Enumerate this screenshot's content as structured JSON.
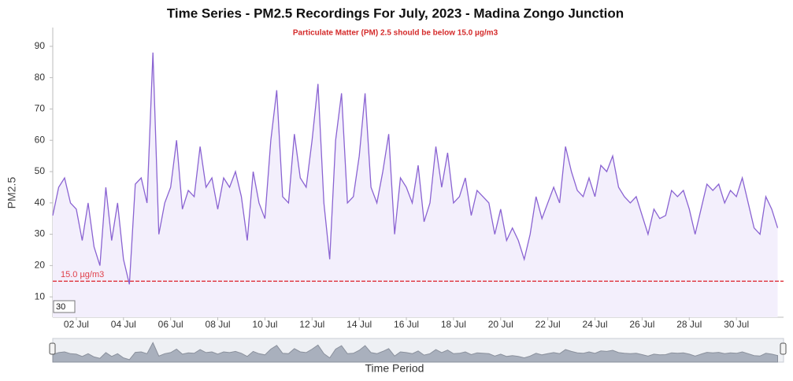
{
  "chart_data": {
    "type": "line",
    "title": "Time Series - PM2.5 Recordings For July, 2023 - Madina Zongo Junction",
    "subtitle": "Particulate Matter (PM) 2.5 should be below 15.0 µg/m3",
    "y_label": "PM2.5",
    "x_label": "Time Period",
    "color": "#8a63d2",
    "fill": "#f3effc",
    "threshold": {
      "value": 15,
      "label": "15.0 µg/m3",
      "color": "#e0404a"
    },
    "roll_period": 30,
    "x": [
      1,
      1.25,
      1.5,
      1.75,
      2,
      2.25,
      2.5,
      2.75,
      3,
      3.25,
      3.5,
      3.75,
      4,
      4.25,
      4.5,
      4.75,
      5,
      5.25,
      5.5,
      5.75,
      6,
      6.25,
      6.5,
      6.75,
      7,
      7.25,
      7.5,
      7.75,
      8,
      8.25,
      8.5,
      8.75,
      9,
      9.25,
      9.5,
      9.75,
      10,
      10.25,
      10.5,
      10.75,
      11,
      11.25,
      11.5,
      11.75,
      12,
      12.25,
      12.5,
      12.75,
      13,
      13.25,
      13.5,
      13.75,
      14,
      14.25,
      14.5,
      14.75,
      15,
      15.25,
      15.5,
      15.75,
      16,
      16.25,
      16.5,
      16.75,
      17,
      17.25,
      17.5,
      17.75,
      18,
      18.25,
      18.5,
      18.75,
      19,
      19.25,
      19.5,
      19.75,
      20,
      20.25,
      20.5,
      20.75,
      21,
      21.25,
      21.5,
      21.75,
      22,
      22.25,
      22.5,
      22.75,
      23,
      23.25,
      23.5,
      23.75,
      24,
      24.25,
      24.5,
      24.75,
      25,
      25.25,
      25.5,
      25.75,
      26,
      26.25,
      26.5,
      26.75,
      27,
      27.25,
      27.5,
      27.75,
      28,
      28.25,
      28.5,
      28.75,
      29,
      29.25,
      29.5,
      29.75,
      30,
      30.25,
      30.5,
      30.75,
      31,
      31.25,
      31.5,
      31.75
    ],
    "values": [
      36,
      45,
      48,
      40,
      38,
      28,
      40,
      26,
      20,
      45,
      28,
      40,
      22,
      14,
      46,
      48,
      40,
      88,
      30,
      40,
      45,
      60,
      38,
      44,
      42,
      58,
      45,
      48,
      38,
      48,
      45,
      50,
      42,
      28,
      50,
      40,
      35,
      60,
      76,
      42,
      40,
      62,
      48,
      45,
      60,
      78,
      40,
      22,
      60,
      75,
      40,
      42,
      55,
      75,
      45,
      40,
      50,
      62,
      30,
      48,
      45,
      40,
      52,
      34,
      40,
      58,
      45,
      56,
      40,
      42,
      48,
      36,
      44,
      42,
      40,
      30,
      38,
      28,
      32,
      28,
      22,
      30,
      42,
      35,
      40,
      45,
      40,
      58,
      50,
      44,
      42,
      48,
      42,
      52,
      50,
      55,
      45,
      42,
      40,
      42,
      36,
      30,
      38,
      35,
      36,
      44,
      42,
      44,
      38,
      30,
      38,
      46,
      44,
      46,
      40,
      44,
      42,
      48,
      40,
      32,
      30,
      42,
      38,
      32
    ],
    "xlim": [
      1,
      32
    ],
    "ylim": [
      3.5,
      96
    ],
    "yticks": [
      10,
      20,
      30,
      40,
      50,
      60,
      70,
      80,
      90
    ],
    "xticks": [
      {
        "value": 2,
        "label": "02 Jul"
      },
      {
        "value": 4,
        "label": "04 Jul"
      },
      {
        "value": 6,
        "label": "06 Jul"
      },
      {
        "value": 8,
        "label": "08 Jul"
      },
      {
        "value": 10,
        "label": "10 Jul"
      },
      {
        "value": 12,
        "label": "12 Jul"
      },
      {
        "value": 14,
        "label": "14 Jul"
      },
      {
        "value": 16,
        "label": "16 Jul"
      },
      {
        "value": 18,
        "label": "18 Jul"
      },
      {
        "value": 20,
        "label": "20 Jul"
      },
      {
        "value": 22,
        "label": "22 Jul"
      },
      {
        "value": 24,
        "label": "24 Jul"
      },
      {
        "value": 26,
        "label": "26 Jul"
      },
      {
        "value": 28,
        "label": "28 Jul"
      },
      {
        "value": 30,
        "label": "30 Jul"
      }
    ],
    "grid": false
  }
}
